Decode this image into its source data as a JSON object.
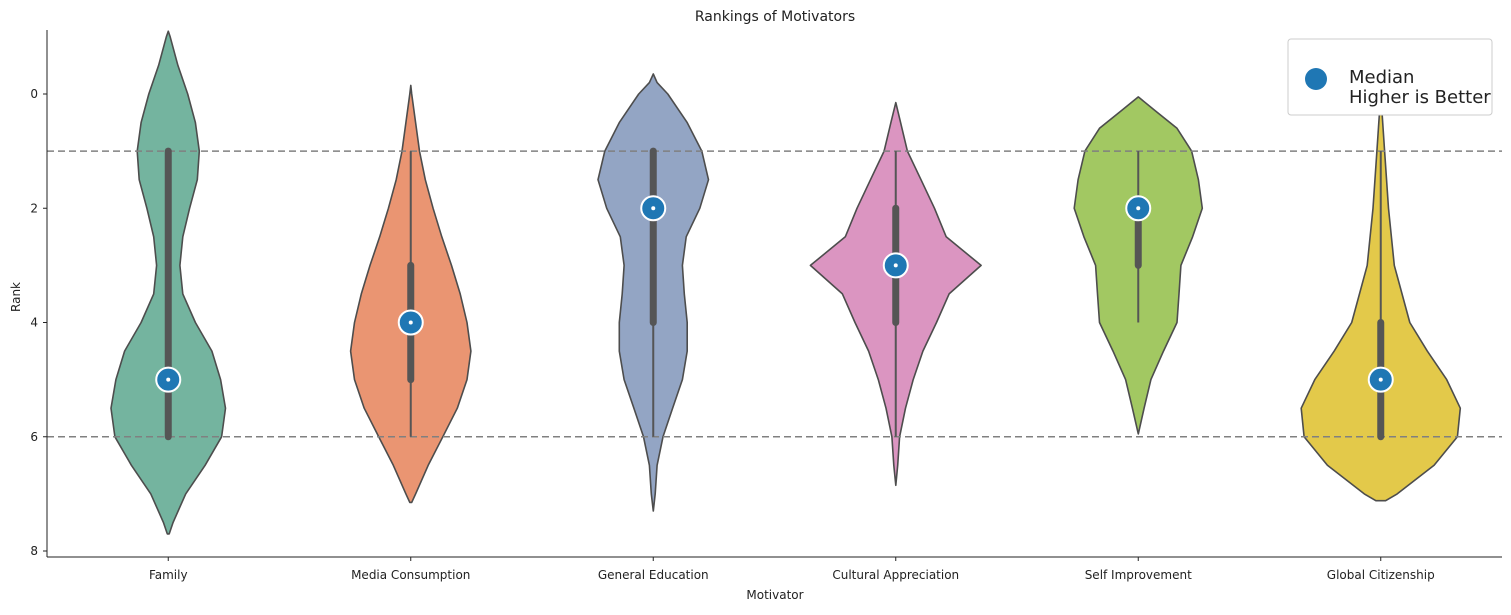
{
  "chart_data": {
    "type": "violin",
    "title": "Rankings of Motivators",
    "xlabel": "Motivator",
    "ylabel": "Rank",
    "ylim": [
      8.1,
      -1.1
    ],
    "y_inverted": true,
    "yticks": [
      0,
      2,
      4,
      6,
      8
    ],
    "categories": [
      "Family",
      "Media Consumption",
      "General Education",
      "Cultural Appreciation",
      "Self Improvement",
      "Global Citizenship"
    ],
    "colors": [
      "#74b49f",
      "#ea9572",
      "#93a5c4",
      "#db95c1",
      "#a2c862",
      "#e3c94a"
    ],
    "reference_lines": [
      1,
      6
    ],
    "reference_line_color": "#808080",
    "median_marker_color": "#1f77b4",
    "legend": {
      "position": "top-right",
      "label": "Median\nHigher is Better"
    },
    "violins": [
      {
        "category": "Family",
        "median": 5,
        "q1": 1,
        "q3": 6,
        "whisker_low": 1,
        "whisker_high": 6,
        "density": [
          [
            -1.1,
            0.0
          ],
          [
            -1.0,
            0.02
          ],
          [
            -0.5,
            0.1
          ],
          [
            0,
            0.2
          ],
          [
            0.5,
            0.28
          ],
          [
            1,
            0.32
          ],
          [
            1.5,
            0.3
          ],
          [
            2,
            0.22
          ],
          [
            2.5,
            0.15
          ],
          [
            3,
            0.12
          ],
          [
            3.5,
            0.15
          ],
          [
            4,
            0.28
          ],
          [
            4.5,
            0.45
          ],
          [
            5,
            0.54
          ],
          [
            5.5,
            0.59
          ],
          [
            6,
            0.55
          ],
          [
            6.5,
            0.38
          ],
          [
            7,
            0.18
          ],
          [
            7.5,
            0.05
          ],
          [
            7.7,
            0.01
          ]
        ]
      },
      {
        "category": "Media Consumption",
        "median": 4,
        "q1": 3,
        "q3": 5,
        "whisker_low": 1,
        "whisker_high": 6,
        "density": [
          [
            -0.15,
            0.0
          ],
          [
            0,
            0.01
          ],
          [
            0.5,
            0.05
          ],
          [
            1,
            0.09
          ],
          [
            1.5,
            0.15
          ],
          [
            2,
            0.23
          ],
          [
            2.5,
            0.32
          ],
          [
            3,
            0.42
          ],
          [
            3.5,
            0.51
          ],
          [
            4,
            0.58
          ],
          [
            4.5,
            0.62
          ],
          [
            5,
            0.58
          ],
          [
            5.5,
            0.48
          ],
          [
            6,
            0.33
          ],
          [
            6.5,
            0.18
          ],
          [
            7,
            0.05
          ],
          [
            7.15,
            0.01
          ]
        ]
      },
      {
        "category": "General Education",
        "median": 2,
        "q1": 1,
        "q3": 4,
        "whisker_low": 1,
        "whisker_high": 6,
        "density": [
          [
            -0.35,
            0.0
          ],
          [
            -0.2,
            0.04
          ],
          [
            0,
            0.15
          ],
          [
            0.5,
            0.35
          ],
          [
            1,
            0.5
          ],
          [
            1.5,
            0.57
          ],
          [
            2,
            0.48
          ],
          [
            2.5,
            0.34
          ],
          [
            3,
            0.3
          ],
          [
            3.5,
            0.32
          ],
          [
            4,
            0.35
          ],
          [
            4.5,
            0.35
          ],
          [
            5,
            0.3
          ],
          [
            5.5,
            0.2
          ],
          [
            6,
            0.1
          ],
          [
            6.5,
            0.04
          ],
          [
            7,
            0.02
          ],
          [
            7.3,
            0.0
          ]
        ]
      },
      {
        "category": "Cultural Appreciation",
        "median": 3,
        "q1": 2,
        "q3": 4,
        "whisker_low": 1,
        "whisker_high": 6,
        "density": [
          [
            0.15,
            0.0
          ],
          [
            0.5,
            0.05
          ],
          [
            1,
            0.12
          ],
          [
            1.5,
            0.26
          ],
          [
            2,
            0.4
          ],
          [
            2.5,
            0.52
          ],
          [
            3,
            0.88
          ],
          [
            3.5,
            0.55
          ],
          [
            4,
            0.42
          ],
          [
            4.5,
            0.28
          ],
          [
            5,
            0.18
          ],
          [
            5.5,
            0.1
          ],
          [
            6,
            0.04
          ],
          [
            6.5,
            0.02
          ],
          [
            6.85,
            0.0
          ]
        ]
      },
      {
        "category": "Self Improvement",
        "median": 2,
        "q1": 2,
        "q3": 3,
        "whisker_low": 1,
        "whisker_high": 4,
        "density": [
          [
            0.05,
            0.0
          ],
          [
            0.3,
            0.18
          ],
          [
            0.6,
            0.4
          ],
          [
            1,
            0.55
          ],
          [
            1.5,
            0.62
          ],
          [
            2,
            0.66
          ],
          [
            2.5,
            0.56
          ],
          [
            3,
            0.44
          ],
          [
            3.5,
            0.42
          ],
          [
            4,
            0.4
          ],
          [
            4.5,
            0.26
          ],
          [
            5,
            0.13
          ],
          [
            5.5,
            0.06
          ],
          [
            5.95,
            0.0
          ]
        ]
      },
      {
        "category": "Global Citizenship",
        "median": 5,
        "q1": 4,
        "q3": 6,
        "whisker_low": 1,
        "whisker_high": 6,
        "density": [
          [
            0,
            0.0
          ],
          [
            0.5,
            0.02
          ],
          [
            1,
            0.04
          ],
          [
            2,
            0.08
          ],
          [
            3,
            0.14
          ],
          [
            4,
            0.3
          ],
          [
            4.5,
            0.48
          ],
          [
            5,
            0.68
          ],
          [
            5.5,
            0.82
          ],
          [
            6,
            0.79
          ],
          [
            6.5,
            0.55
          ],
          [
            7,
            0.17
          ],
          [
            7.12,
            0.05
          ]
        ]
      }
    ]
  }
}
